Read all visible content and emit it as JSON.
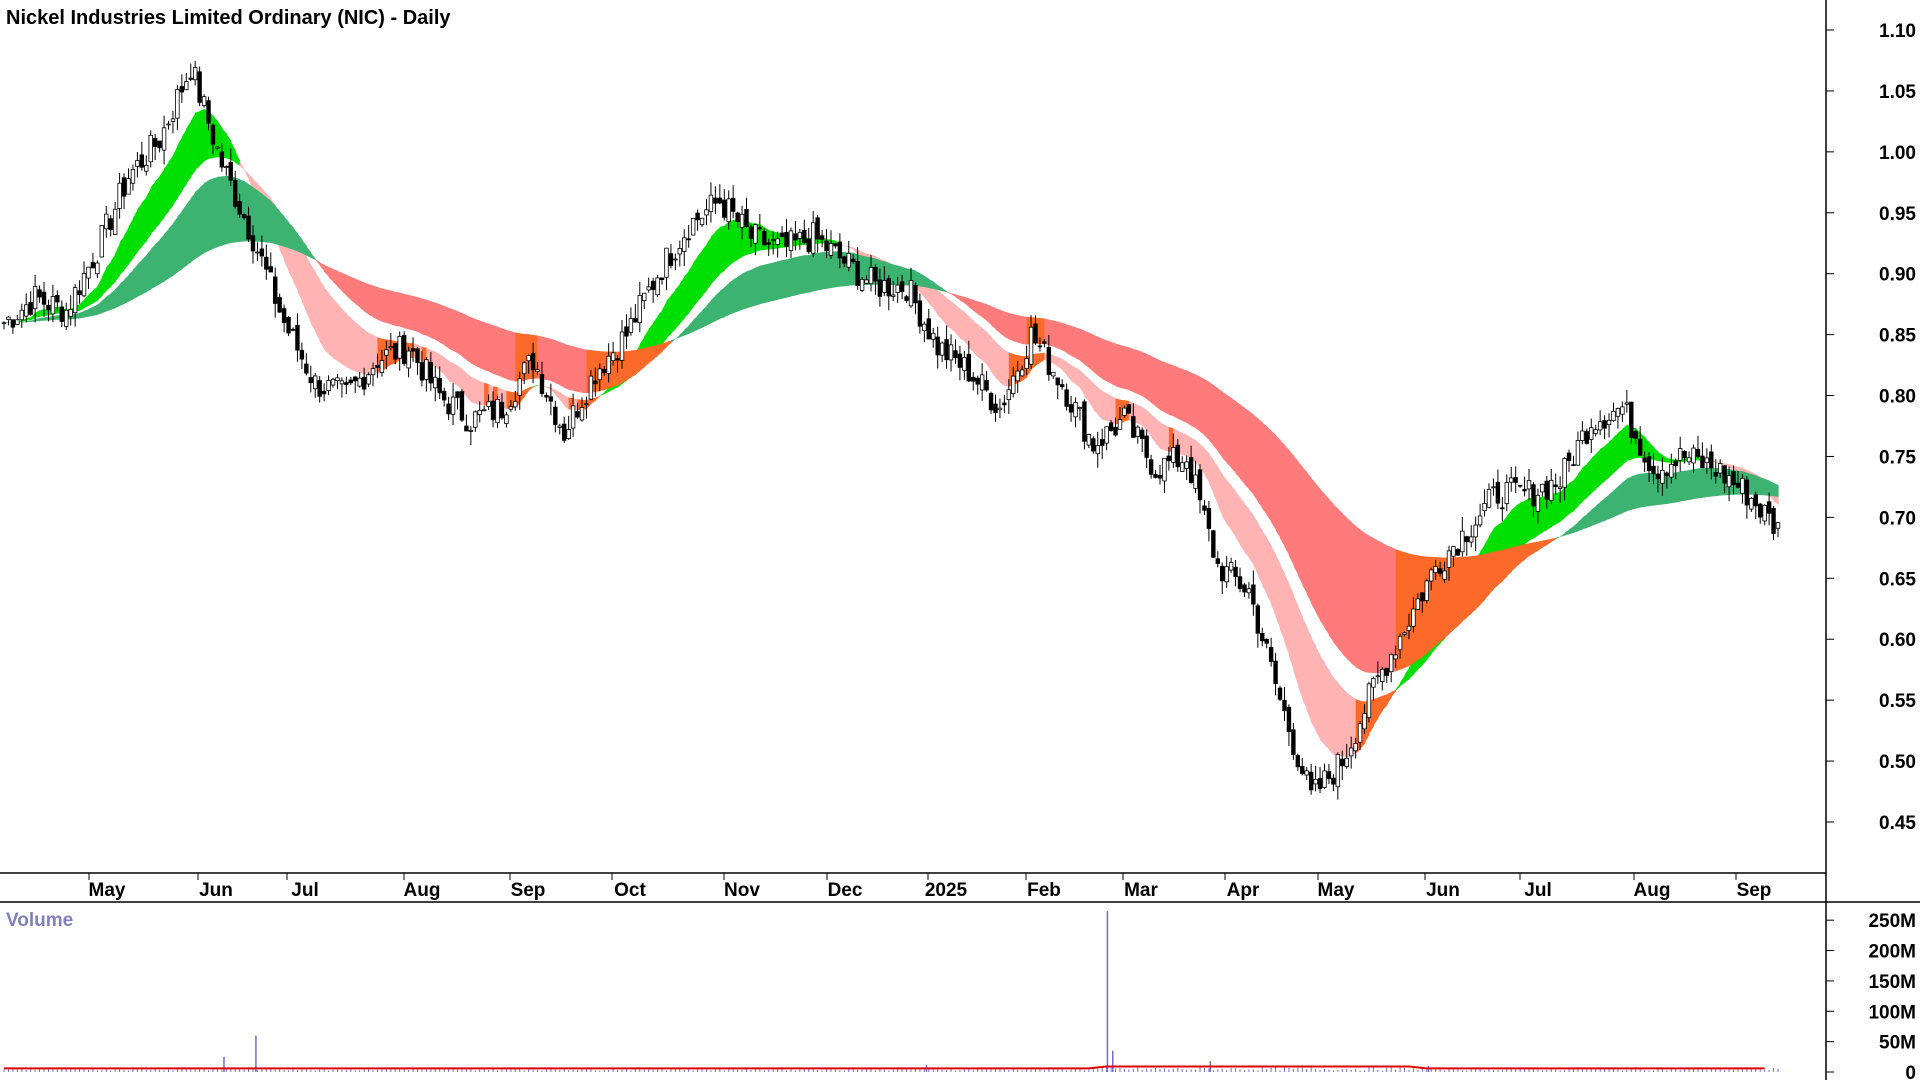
{
  "chart_data": {
    "type": "candlestick",
    "title": "Nickel Industries Limited Ordinary (NIC) - Daily",
    "price_axis": {
      "ylim": [
        0.4,
        1.12
      ],
      "ticks": [
        "1.10",
        "1.05",
        "1.00",
        "0.95",
        "0.90",
        "0.85",
        "0.80",
        "0.75",
        "0.70",
        "0.65",
        "0.60",
        "0.55",
        "0.50",
        "0.45"
      ],
      "position": "right"
    },
    "x_axis_labels": [
      "May",
      "Jun",
      "Jul",
      "Aug",
      "Sep",
      "Oct",
      "Nov",
      "Dec",
      "2025",
      "Feb",
      "Mar",
      "Apr",
      "May",
      "Jun",
      "Jul",
      "Aug",
      "Sep"
    ],
    "price_path": [
      [
        0.86,
        0.86
      ],
      [
        0.89,
        0.88
      ],
      [
        0.87,
        0.87
      ],
      [
        0.95,
        0.92
      ],
      [
        1.0,
        0.98
      ],
      [
        1.0,
        1.01
      ],
      [
        1.07,
        1.07
      ],
      [
        0.95,
        0.99
      ],
      [
        0.92,
        0.93
      ],
      [
        0.85,
        0.86
      ],
      [
        0.8,
        0.81
      ],
      [
        0.8,
        0.8
      ],
      [
        0.84,
        0.83
      ],
      [
        0.86,
        0.84
      ],
      [
        0.8,
        0.8
      ],
      [
        0.77,
        0.78
      ],
      [
        0.8,
        0.79
      ],
      [
        0.84,
        0.83
      ],
      [
        0.76,
        0.77
      ],
      [
        0.83,
        0.82
      ],
      [
        0.86,
        0.85
      ],
      [
        0.92,
        0.9
      ],
      [
        0.95,
        0.94
      ],
      [
        0.97,
        0.96
      ],
      [
        0.92,
        0.93
      ],
      [
        0.91,
        0.92
      ],
      [
        0.93,
        0.93
      ],
      [
        0.9,
        0.91
      ],
      [
        0.89,
        0.89
      ],
      [
        0.89,
        0.89
      ],
      [
        0.83,
        0.84
      ],
      [
        0.81,
        0.82
      ],
      [
        0.78,
        0.79
      ],
      [
        0.86,
        0.85
      ],
      [
        0.8,
        0.81
      ],
      [
        0.75,
        0.76
      ],
      [
        0.77,
        0.78
      ],
      [
        0.73,
        0.74
      ],
      [
        0.75,
        0.75
      ],
      [
        0.65,
        0.66
      ],
      [
        0.63,
        0.64
      ],
      [
        0.53,
        0.55
      ],
      [
        0.46,
        0.47
      ],
      [
        0.5,
        0.5
      ],
      [
        0.55,
        0.56
      ],
      [
        0.6,
        0.61
      ],
      [
        0.65,
        0.66
      ],
      [
        0.68,
        0.69
      ],
      [
        0.71,
        0.72
      ],
      [
        0.72,
        0.72
      ],
      [
        0.73,
        0.73
      ],
      [
        0.77,
        0.78
      ],
      [
        0.8,
        0.79
      ],
      [
        0.74,
        0.74
      ],
      [
        0.75,
        0.75
      ],
      [
        0.74,
        0.74
      ],
      [
        0.72,
        0.72
      ],
      [
        0.7,
        0.69
      ]
    ],
    "bands": [
      {
        "name": "short-term GMMA",
        "colors": [
          "#00e000",
          "#fc6a2a",
          "#ffb3b3"
        ]
      },
      {
        "name": "long-term GMMA",
        "colors": [
          "#3cb371",
          "#fc6a2a",
          "#ff7b7b"
        ]
      }
    ],
    "volume": {
      "label": "Volume",
      "ticks": [
        "250M",
        "200M",
        "150M",
        "100M",
        "50M",
        "0"
      ],
      "ylim": [
        0,
        275
      ],
      "spikes": [
        [
          0.124,
          25
        ],
        [
          0.142,
          60
        ],
        [
          0.52,
          12
        ],
        [
          0.622,
          265
        ],
        [
          0.625,
          35
        ],
        [
          0.68,
          18
        ],
        [
          0.803,
          10
        ]
      ],
      "base_level": 6,
      "bar_color": "#6e6ec8",
      "average_color": "#e00000"
    },
    "grid": false,
    "legend": "none"
  }
}
